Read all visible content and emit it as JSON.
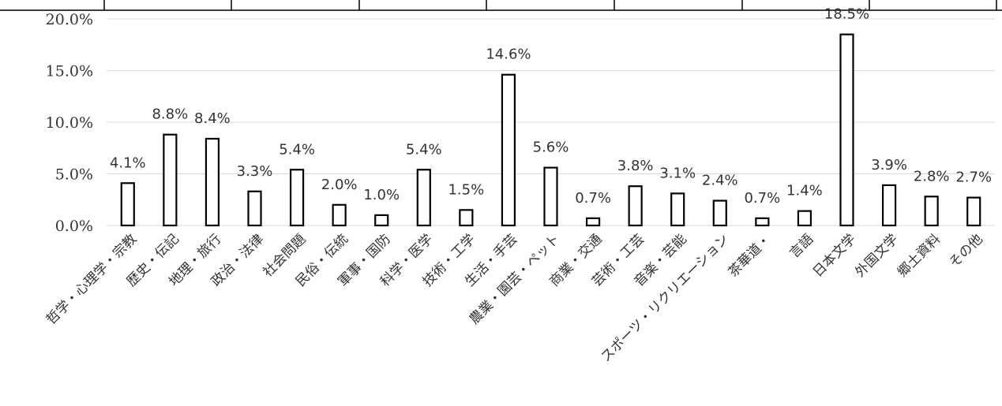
{
  "chart_data": {
    "type": "bar",
    "categories": [
      "哲学・心理学・宗教",
      "歴史・伝記",
      "地理・旅行",
      "政治・法律",
      "社会問題",
      "民俗・伝統",
      "軍事・国防",
      "科学・医学",
      "技術・工学",
      "生活・手芸",
      "農業・園芸・ペット",
      "商業・交通",
      "芸術・工芸",
      "音楽・芸能",
      "スポーツ・リクリエーション",
      "茶華道・",
      "言語",
      "日本文学",
      "外国文学",
      "郷土資料",
      "その他"
    ],
    "values": [
      4.1,
      8.8,
      8.4,
      3.3,
      5.4,
      2.0,
      1.0,
      5.4,
      1.5,
      14.6,
      5.6,
      0.7,
      3.8,
      3.1,
      2.4,
      0.7,
      1.4,
      18.5,
      3.9,
      2.8,
      2.7
    ],
    "data_labels": [
      "4.1%",
      "8.8%",
      "8.4%",
      "3.3%",
      "5.4%",
      "2.0%",
      "1.0%",
      "5.4%",
      "1.5%",
      "14.6%",
      "5.6%",
      "0.7%",
      "3.8%",
      "3.1%",
      "2.4%",
      "0.7%",
      "1.4%",
      "18.5%",
      "3.9%",
      "2.8%",
      "2.7%"
    ],
    "y_ticks": [
      "0.0%",
      "5.0%",
      "10.0%",
      "15.0%",
      "20.0%"
    ],
    "ylim": [
      0,
      20
    ],
    "grid": true,
    "legend": "none",
    "title": "",
    "xlabel": "",
    "ylabel": ""
  }
}
